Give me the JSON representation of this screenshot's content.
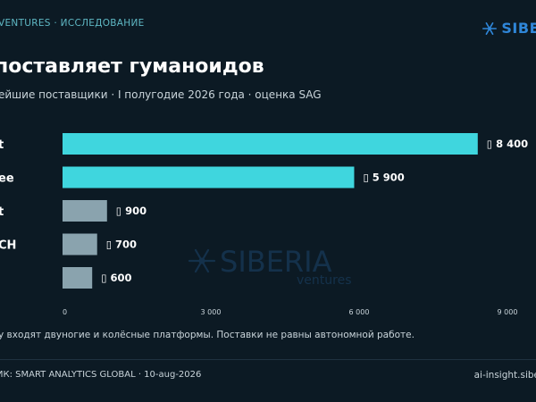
{
  "header": {
    "kicker": "VENTURES · ИССЛЕДОВАНИЕ",
    "brand": "SIBE",
    "brand_icon": "snowflake-icon"
  },
  "title": "поставляет гуманоидов",
  "subtitle": "ейшие поставщики · I полугодие 2026 года · оценка SAG",
  "watermark": {
    "line1": "SIBERIA",
    "line2": "ventures",
    "icon": "snowflake-icon"
  },
  "footnote": "у входят двуногие и колёсные платформы. Поставки не равны автономной работе.",
  "footer": {
    "source": "ИК: SMART ANALYTICS GLOBAL · 10-aug-2026",
    "site": "ai-insight.sibe"
  },
  "chart_data": {
    "type": "bar",
    "orientation": "horizontal",
    "categories": [
      "t",
      "ee",
      "t",
      "CH",
      ""
    ],
    "values": [
      8400,
      5900,
      900,
      700,
      600
    ],
    "value_labels": [
      "▯ 8 400",
      "▯ 5 900",
      "▯ 900",
      "▯ 700",
      "▯ 600"
    ],
    "xlim": [
      0,
      9000
    ],
    "xticks": [
      0,
      3000,
      6000,
      9000
    ],
    "xtick_labels": [
      "0",
      "3 000",
      "6 000",
      "9 000"
    ],
    "grid": false,
    "colors": {
      "highlight": "#3fd6de",
      "muted": "#8aa3ae",
      "tick": "#c9d4da"
    },
    "highlighted_count": 2
  }
}
